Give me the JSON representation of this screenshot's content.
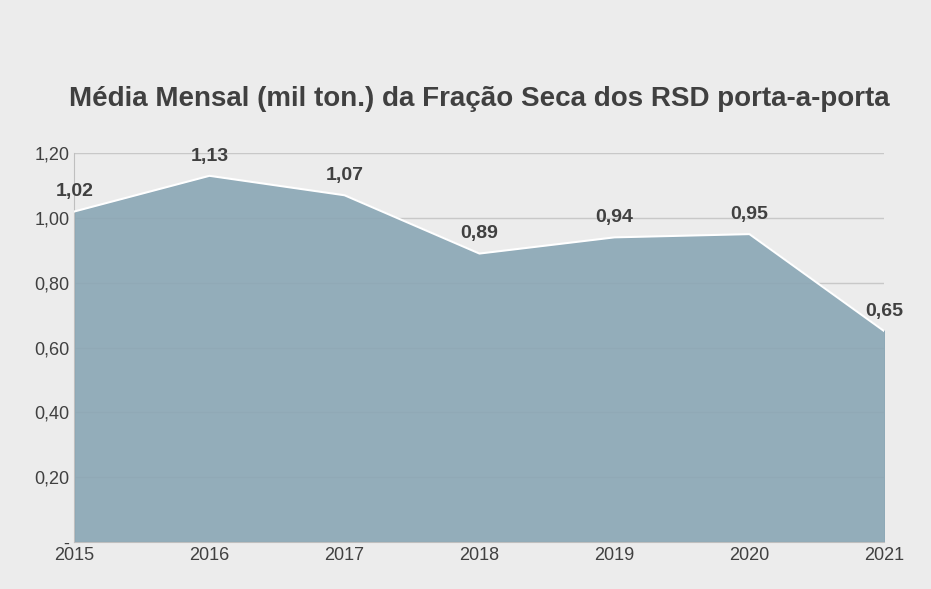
{
  "chart_data": {
    "type": "area",
    "title": "Média Mensal (mil ton.) da Fração Seca dos RSD porta-a-porta",
    "x": [
      2015,
      2016,
      2017,
      2018,
      2019,
      2020,
      2021
    ],
    "values": [
      1.02,
      1.13,
      1.07,
      0.89,
      0.94,
      0.95,
      0.65
    ],
    "value_labels": [
      "1,02",
      "1,13",
      "1,07",
      "0,89",
      "0,94",
      "0,95",
      "0,65"
    ],
    "data_labels": true,
    "color": "#8aa6b5",
    "xlim": [
      2015,
      2021
    ],
    "xticks": [
      2015,
      2016,
      2017,
      2018,
      2019,
      2020,
      2021
    ],
    "ylim": [
      0,
      1.2
    ],
    "yticks": [
      {
        "value": 0,
        "label": "-"
      },
      {
        "value": 0.2,
        "label": "0,20"
      },
      {
        "value": 0.4,
        "label": "0,40"
      },
      {
        "value": 0.6,
        "label": "0,60"
      },
      {
        "value": 0.8,
        "label": "0,80"
      },
      {
        "value": 1.0,
        "label": "1,00"
      },
      {
        "value": 1.2,
        "label": "1,20"
      }
    ],
    "grid": true
  }
}
